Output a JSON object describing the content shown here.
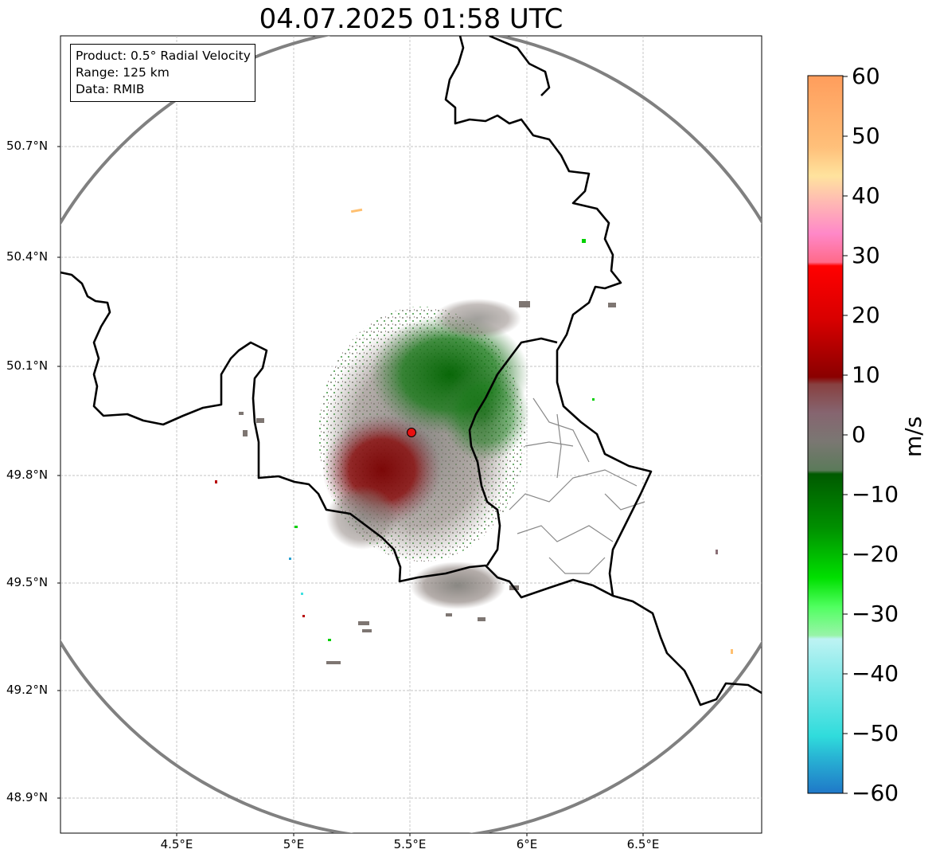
{
  "title": "04.07.2025 01:58 UTC",
  "info": {
    "product": "Product: 0.5° Radial Velocity",
    "range": "Range: 125 km",
    "data": "Data: RMIB"
  },
  "lat_labels": [
    "50.7°N",
    "50.4°N",
    "50.1°N",
    "49.8°N",
    "49.5°N",
    "49.2°N",
    "48.9°N"
  ],
  "lon_labels": [
    "4.5°E",
    "5°E",
    "5.5°E",
    "6°E",
    "6.5°E"
  ],
  "colorbar": {
    "label": "m/s",
    "ticks": [
      "60",
      "50",
      "40",
      "30",
      "20",
      "10",
      "0",
      "−10",
      "−20",
      "−30",
      "−40",
      "−50",
      "−60"
    ],
    "min": -60,
    "max": 60
  },
  "map": {
    "radar_site": "radar-site-marker",
    "range_ring": "125 km"
  }
}
